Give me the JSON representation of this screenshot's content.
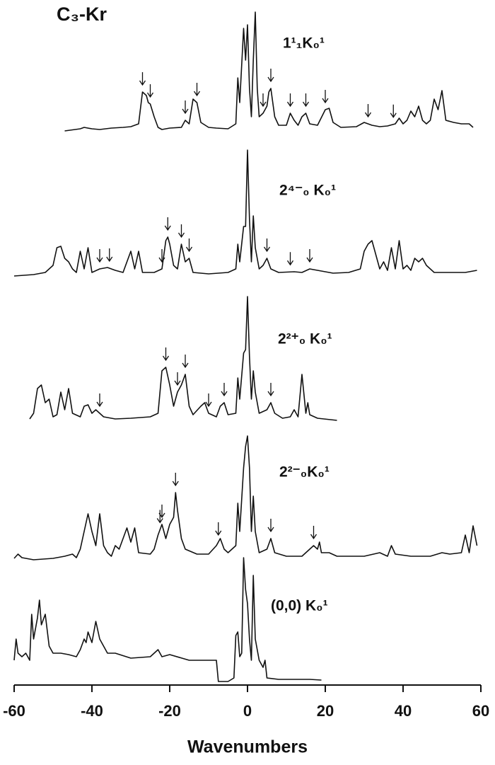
{
  "chart_data": {
    "type": "line",
    "title": "C₃-Kr",
    "x_label": "Wavenumbers",
    "xlim": [
      -60,
      60
    ],
    "xticks": [
      -60,
      -40,
      -20,
      0,
      20,
      40,
      60
    ],
    "color": "#111111",
    "series": [
      {
        "name": "1¹₁K₀¹",
        "x": [
          -47,
          -43,
          -42,
          -40,
          -38,
          -35,
          -32,
          -30,
          -28,
          -27,
          -26,
          -25.5,
          -25,
          -24,
          -23,
          -22,
          -20,
          -17,
          -16,
          -15,
          -14,
          -13,
          -12,
          -10,
          -8,
          -5,
          -3,
          -2.5,
          -2,
          -1,
          -0.5,
          0,
          0.5,
          1,
          1.5,
          2,
          2.5,
          3,
          4,
          5,
          5.5,
          6,
          7,
          8,
          10,
          11,
          12,
          13,
          14,
          15,
          16,
          18,
          20,
          21,
          22,
          24,
          28,
          30,
          32,
          34,
          36,
          38,
          39,
          40,
          41,
          42,
          43,
          44,
          45,
          46,
          47,
          48,
          49,
          50,
          51,
          53,
          55,
          57,
          58
        ],
        "values": [
          0,
          3,
          5,
          3,
          2,
          4,
          5,
          6,
          10,
          55,
          50,
          40,
          38,
          20,
          5,
          2,
          4,
          5,
          15,
          10,
          45,
          40,
          12,
          5,
          4,
          3,
          10,
          75,
          40,
          145,
          100,
          150,
          60,
          20,
          100,
          168,
          60,
          20,
          25,
          35,
          55,
          60,
          20,
          8,
          8,
          25,
          15,
          8,
          20,
          25,
          10,
          8,
          30,
          32,
          12,
          5,
          6,
          12,
          8,
          6,
          7,
          10,
          18,
          10,
          15,
          28,
          20,
          35,
          15,
          10,
          15,
          45,
          30,
          57,
          15,
          12,
          10,
          10,
          5
        ],
        "arrows": [
          -27,
          -25,
          -16,
          -13,
          4,
          6,
          11,
          15,
          20,
          31,
          37.5
        ]
      },
      {
        "name": "2⁴⁻₀ K₀¹",
        "x": [
          -60,
          -55,
          -52,
          -50,
          -49,
          -48,
          -47,
          -46,
          -45,
          -44,
          -43,
          -42,
          -41,
          -40,
          -38,
          -36,
          -34,
          -32,
          -30,
          -29,
          -28,
          -27,
          -24,
          -22,
          -21,
          -20.5,
          -20,
          -19,
          -18,
          -17,
          -16,
          -15,
          -14,
          -10,
          -5,
          -3,
          -2.5,
          -2,
          -1,
          -0.5,
          0,
          0.5,
          1,
          1.5,
          2,
          3,
          4,
          5,
          6,
          8,
          12,
          14,
          16,
          18,
          22,
          26,
          29,
          30,
          31,
          32,
          33,
          34,
          35,
          36,
          37,
          38,
          39,
          40,
          41,
          42,
          43,
          44,
          45,
          46,
          48,
          52,
          56,
          59
        ],
        "values": [
          0,
          2,
          5,
          15,
          40,
          42,
          25,
          20,
          10,
          5,
          35,
          10,
          40,
          5,
          10,
          12,
          8,
          5,
          35,
          10,
          35,
          5,
          5,
          10,
          50,
          55,
          45,
          15,
          10,
          45,
          20,
          25,
          5,
          3,
          5,
          10,
          45,
          20,
          70,
          70,
          178,
          80,
          20,
          85,
          40,
          10,
          15,
          25,
          10,
          5,
          6,
          5,
          10,
          8,
          4,
          5,
          10,
          35,
          45,
          50,
          30,
          10,
          20,
          8,
          40,
          10,
          50,
          10,
          15,
          8,
          25,
          20,
          25,
          15,
          5,
          5,
          5,
          8
        ],
        "arrows": [
          -38,
          -35.5,
          -22,
          -20.5,
          -17,
          -15,
          5,
          11,
          16
        ]
      },
      {
        "name": "2²⁺₀ K₀¹",
        "x": [
          -56,
          -55,
          -54,
          -53,
          -52,
          -51,
          -50,
          -49,
          -48,
          -47,
          -46,
          -45,
          -43,
          -42,
          -41,
          -40,
          -39,
          -37,
          -34,
          -30,
          -25,
          -23,
          -22,
          -21,
          -20,
          -19,
          -18,
          -17,
          -16,
          -15,
          -14,
          -12,
          -11,
          -10,
          -8,
          -7,
          -6,
          -5,
          -3,
          -2.5,
          -2,
          -1,
          -0.5,
          0,
          0.5,
          1,
          1.5,
          2,
          3,
          5,
          6,
          7,
          9,
          11,
          12,
          13,
          14,
          15,
          15.5,
          16,
          18,
          23
        ],
        "values": [
          2,
          10,
          45,
          50,
          25,
          30,
          5,
          8,
          40,
          15,
          45,
          10,
          5,
          20,
          22,
          10,
          15,
          5,
          2,
          3,
          5,
          10,
          70,
          75,
          50,
          20,
          40,
          50,
          65,
          20,
          8,
          20,
          25,
          10,
          5,
          20,
          25,
          8,
          10,
          60,
          30,
          95,
          100,
          175,
          90,
          30,
          70,
          40,
          10,
          15,
          25,
          10,
          3,
          5,
          15,
          5,
          65,
          10,
          25,
          8,
          3,
          0
        ],
        "arrows": [
          -38,
          -21,
          -18,
          -16,
          -10,
          -6,
          6
        ]
      },
      {
        "name": "2²⁻₀K₀¹",
        "x": [
          -60,
          -59,
          -58,
          -55,
          -50,
          -47,
          -45,
          -44,
          -43,
          -42,
          -41,
          -40,
          -39,
          -38,
          -37,
          -36,
          -35,
          -34,
          -33,
          -32,
          -31,
          -30,
          -29,
          -28,
          -25,
          -24,
          -23,
          -22,
          -21,
          -20,
          -19,
          -18.5,
          -18,
          -17,
          -16,
          -13,
          -10,
          -8,
          -7,
          -6,
          -5,
          -3,
          -2.5,
          -2,
          -1,
          -0.5,
          0,
          0.5,
          1,
          1.5,
          2,
          3,
          5,
          6,
          7,
          10,
          14,
          16,
          17,
          18,
          18.5,
          19,
          21,
          23,
          30,
          34,
          36,
          37,
          38,
          42,
          47,
          50,
          52,
          55,
          56,
          57,
          58,
          59
        ],
        "values": [
          2,
          8,
          3,
          0,
          2,
          5,
          8,
          3,
          15,
          40,
          65,
          40,
          20,
          65,
          20,
          10,
          5,
          20,
          15,
          30,
          45,
          25,
          45,
          10,
          8,
          15,
          35,
          50,
          30,
          50,
          60,
          95,
          70,
          30,
          15,
          8,
          8,
          20,
          30,
          15,
          10,
          20,
          80,
          40,
          130,
          160,
          175,
          130,
          40,
          90,
          40,
          10,
          15,
          30,
          10,
          5,
          5,
          15,
          20,
          15,
          25,
          10,
          10,
          5,
          5,
          10,
          5,
          20,
          8,
          5,
          5,
          10,
          8,
          10,
          35,
          10,
          48,
          20
        ],
        "arrows": [
          -22.5,
          -22,
          -18.5,
          -7.5,
          6,
          17
        ]
      },
      {
        "name": "(0,0) K₀¹",
        "x": [
          -60,
          -59.5,
          -59,
          -58,
          -57,
          -56,
          -55.5,
          -55,
          -54,
          -53.5,
          -53,
          -52,
          -51,
          -50,
          -48,
          -46,
          -44,
          -43,
          -42,
          -41.5,
          -41,
          -40,
          -39,
          -38,
          -36,
          -34,
          -30,
          -25,
          -23,
          -22,
          -20,
          -15,
          -10,
          -8,
          -7.5,
          -5,
          -3.5,
          -3,
          -2.5,
          -2,
          -1.5,
          -1,
          -0.5,
          0,
          0.5,
          1,
          1.5,
          2,
          3,
          4,
          4.5,
          5,
          8,
          12,
          16,
          19
        ],
        "values": [
          30,
          60,
          40,
          35,
          40,
          30,
          95,
          60,
          90,
          115,
          80,
          95,
          50,
          40,
          40,
          38,
          35,
          45,
          60,
          55,
          70,
          55,
          85,
          60,
          40,
          40,
          33,
          35,
          45,
          35,
          38,
          30,
          30,
          30,
          0,
          0,
          5,
          65,
          70,
          35,
          40,
          175,
          130,
          110,
          60,
          30,
          150,
          60,
          30,
          20,
          30,
          5,
          3,
          3,
          3,
          2
        ],
        "arrows": []
      }
    ]
  }
}
